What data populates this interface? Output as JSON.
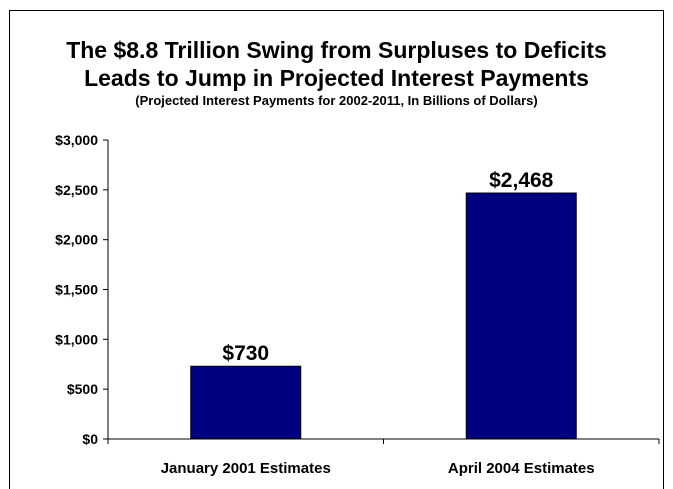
{
  "chart_data": {
    "type": "bar",
    "title": "The $8.8 Trillion Swing from Surpluses to Deficits",
    "title_line2": "Leads to Jump in Projected Interest Payments",
    "subtitle": "(Projected Interest Payments for 2002-2011, In Billions of Dollars)",
    "categories": [
      "January 2001 Estimates",
      "April 2004 Estimates"
    ],
    "values": [
      730,
      2468
    ],
    "value_labels": [
      "$730",
      "$2,468"
    ],
    "ylim": [
      0,
      3000
    ],
    "yticks": [
      0,
      500,
      1000,
      1500,
      2000,
      2500,
      3000
    ],
    "ytick_labels": [
      "$0",
      "$500",
      "$1,000",
      "$1,500",
      "$2,000",
      "$2,500",
      "$3,000"
    ],
    "xlabel": "",
    "ylabel": "",
    "grid": false,
    "bar_color": "#000080"
  }
}
